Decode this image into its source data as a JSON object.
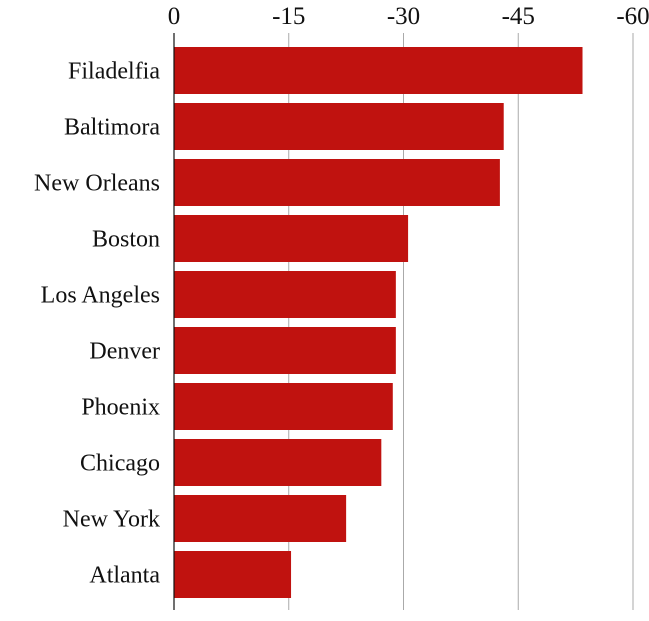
{
  "chart_data": {
    "type": "bar",
    "orientation": "horizontal",
    "title": "",
    "xlabel": "",
    "ylabel": "",
    "categories": [
      "Filadelfia",
      "Baltimora",
      "New Orleans",
      "Boston",
      "Los Angeles",
      "Denver",
      "Phoenix",
      "Chicago",
      "New York",
      "Atlanta"
    ],
    "values": [
      -53.4,
      -43.1,
      -42.6,
      -30.6,
      -29.0,
      -29.0,
      -28.6,
      -27.1,
      -22.5,
      -15.3
    ],
    "xlim": [
      0,
      -60
    ],
    "xticks": [
      0,
      -15,
      -30,
      -45,
      -60
    ],
    "xtick_labels": [
      "0",
      "-15",
      "-30",
      "-45",
      "-60"
    ],
    "grid": true,
    "bar_color": "#c0120f"
  }
}
